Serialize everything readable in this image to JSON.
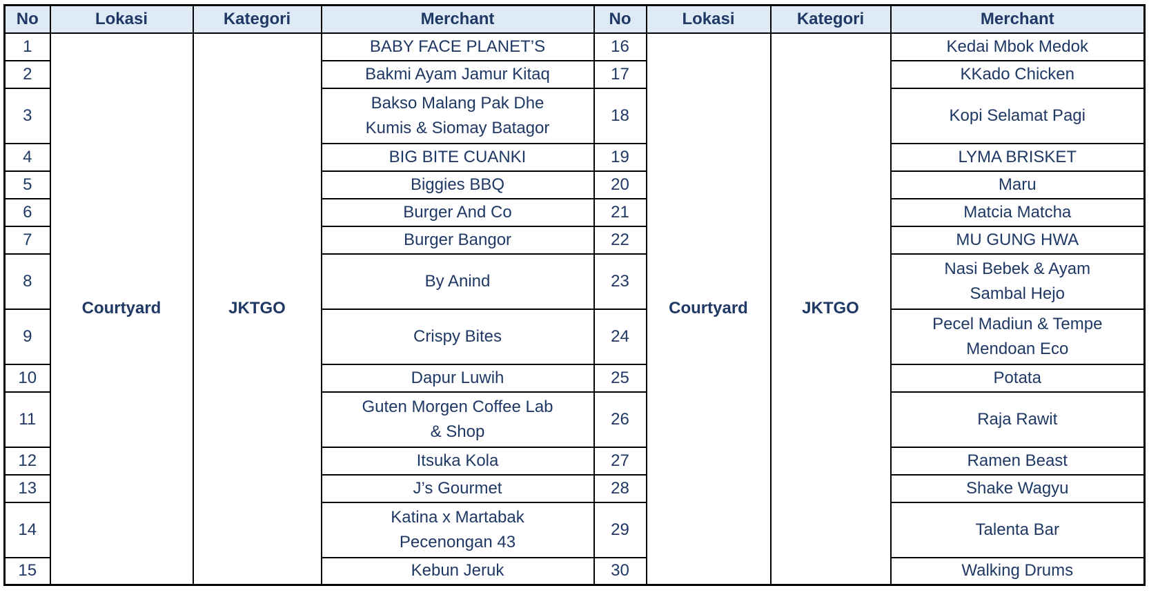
{
  "colors": {
    "text": "#1F3864",
    "header_bg": "#DEEBF7",
    "border": "#000000"
  },
  "table": {
    "headers": [
      "No",
      "Lokasi",
      "Kategori",
      "Merchant",
      "No",
      "Lokasi",
      "Kategori",
      "Merchant"
    ],
    "left": {
      "lokasi": "Courtyard",
      "kategori": "JKTGO",
      "rows": [
        {
          "no": "1",
          "merchant": "BABY FACE PLANET’S"
        },
        {
          "no": "2",
          "merchant": "Bakmi Ayam Jamur Kitaq"
        },
        {
          "no": "3",
          "merchant": "Bakso Malang Pak Dhe\nKumis & Siomay Batagor"
        },
        {
          "no": "4",
          "merchant": "BIG BITE CUANKI"
        },
        {
          "no": "5",
          "merchant": "Biggies BBQ"
        },
        {
          "no": "6",
          "merchant": "Burger And Co"
        },
        {
          "no": "7",
          "merchant": "Burger Bangor"
        },
        {
          "no": "8",
          "merchant": "By Anind"
        },
        {
          "no": "9",
          "merchant": "Crispy Bites"
        },
        {
          "no": "10",
          "merchant": "Dapur Luwih"
        },
        {
          "no": "11",
          "merchant": "Guten Morgen Coffee Lab\n& Shop"
        },
        {
          "no": "12",
          "merchant": "Itsuka Kola"
        },
        {
          "no": "13",
          "merchant": "J’s Gourmet"
        },
        {
          "no": "14",
          "merchant": "Katina x Martabak\nPecenongan 43"
        },
        {
          "no": "15",
          "merchant": "Kebun Jeruk"
        }
      ]
    },
    "right": {
      "lokasi": "Courtyard",
      "kategori": "JKTGO",
      "rows": [
        {
          "no": "16",
          "merchant": "Kedai Mbok Medok"
        },
        {
          "no": "17",
          "merchant": "KKado Chicken"
        },
        {
          "no": "18",
          "merchant": "Kopi Selamat Pagi"
        },
        {
          "no": "19",
          "merchant": "LYMA BRISKET"
        },
        {
          "no": "20",
          "merchant": "Maru"
        },
        {
          "no": "21",
          "merchant": "Matcia Matcha"
        },
        {
          "no": "22",
          "merchant": "MU GUNG HWA"
        },
        {
          "no": "23",
          "merchant": "Nasi Bebek & Ayam\nSambal Hejo"
        },
        {
          "no": "24",
          "merchant": "Pecel Madiun & Tempe\nMendoan Eco"
        },
        {
          "no": "25",
          "merchant": "Potata"
        },
        {
          "no": "26",
          "merchant": "Raja Rawit"
        },
        {
          "no": "27",
          "merchant": "Ramen Beast"
        },
        {
          "no": "28",
          "merchant": "Shake Wagyu"
        },
        {
          "no": "29",
          "merchant": "Talenta Bar"
        },
        {
          "no": "30",
          "merchant": "Walking Drums"
        }
      ]
    }
  }
}
